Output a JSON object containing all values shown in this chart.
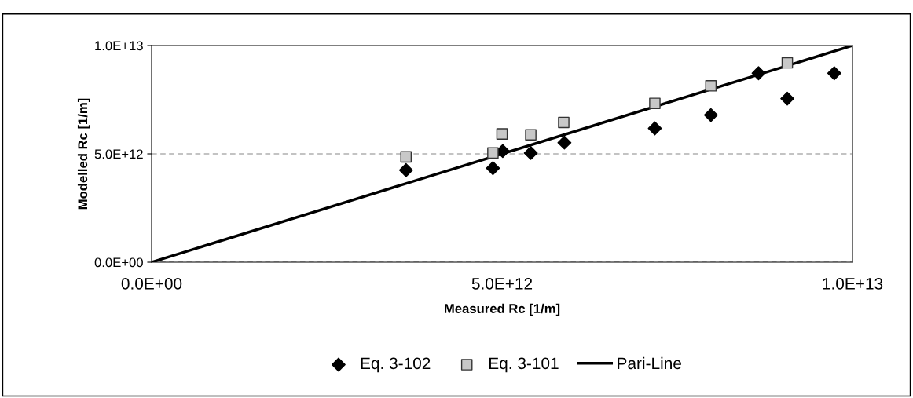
{
  "chart_data": {
    "type": "scatter",
    "xlabel": "Measured Rc [1/m]",
    "ylabel": "Modelled Rc [1/m]",
    "xlim": [
      0,
      10000000000000.0
    ],
    "ylim": [
      0,
      10000000000000.0
    ],
    "xticks": [
      {
        "value": 0,
        "label": "0.0E+00"
      },
      {
        "value": 5000000000000.0,
        "label": "5.0E+12"
      },
      {
        "value": 10000000000000.0,
        "label": "1.0E+13"
      }
    ],
    "yticks": [
      {
        "value": 0,
        "label": "0.0E+00"
      },
      {
        "value": 5000000000000.0,
        "label": "5.0E+12"
      },
      {
        "value": 10000000000000.0,
        "label": "1.0E+13"
      }
    ],
    "grid": "y",
    "legend": "bottom",
    "series": [
      {
        "name": "Eq. 3-102",
        "marker": "diamond",
        "color": "#000000",
        "x": [
          3630000000000.0,
          4870000000000.0,
          5010000000000.0,
          5410000000000.0,
          5890000000000.0,
          7180000000000.0,
          7980000000000.0,
          8660000000000.0,
          9070000000000.0,
          9740000000000.0
        ],
        "values": [
          4250000000000.0,
          4340000000000.0,
          5130000000000.0,
          5040000000000.0,
          5520000000000.0,
          6180000000000.0,
          6790000000000.0,
          8720000000000.0,
          7550000000000.0,
          8720000000000.0
        ]
      },
      {
        "name": "Eq. 3-101",
        "marker": "square",
        "color": "#c8c8c8",
        "x": [
          3630000000000.0,
          4870000000000.0,
          5000000000000.0,
          5410000000000.0,
          5880000000000.0,
          7180000000000.0,
          7980000000000.0,
          9070000000000.0
        ],
        "values": [
          4860000000000.0,
          5040000000000.0,
          5920000000000.0,
          5880000000000.0,
          6450000000000.0,
          7330000000000.0,
          8140000000000.0,
          9200000000000.0
        ]
      },
      {
        "name": "Pari-Line",
        "type": "line",
        "marker": "none",
        "color": "#000000",
        "x": [
          0,
          10000000000000.0
        ],
        "values": [
          0,
          10000000000000.0
        ]
      }
    ]
  }
}
